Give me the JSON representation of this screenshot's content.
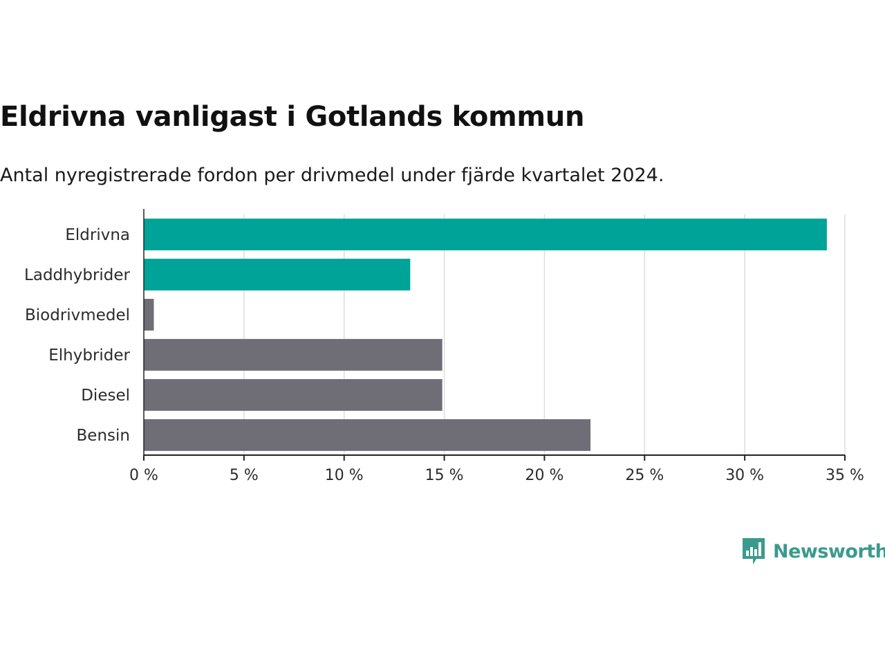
{
  "title": "Eldrivna vanligast i Gotlands kommun",
  "subtitle": "Antal nyregistrerade fordon per drivmedel under fjärde kvartalet 2024.",
  "brand": {
    "name": "Newsworthy",
    "logo_icon": "bar-chart-speech-bubble-icon",
    "color": "#3a9a8d"
  },
  "colors": {
    "highlight": "#00a397",
    "neutral": "#6f6d75",
    "grid": "#dddddd",
    "axis": "#222222"
  },
  "chart_data": {
    "type": "bar",
    "orientation": "horizontal",
    "categories": [
      "Eldrivna",
      "Laddhybrider",
      "Biodrivmedel",
      "Elhybrider",
      "Diesel",
      "Bensin"
    ],
    "values": [
      34.1,
      13.3,
      0.5,
      14.9,
      14.9,
      22.3
    ],
    "highlighted": [
      true,
      true,
      false,
      false,
      false,
      false
    ],
    "xlim": [
      0,
      35
    ],
    "xticks": [
      0,
      5,
      10,
      15,
      20,
      25,
      30,
      35
    ],
    "xtick_labels": [
      "0 %",
      "5 %",
      "10 %",
      "15 %",
      "20 %",
      "25 %",
      "30 %",
      "35 %"
    ],
    "grid": true,
    "legend": "none"
  }
}
